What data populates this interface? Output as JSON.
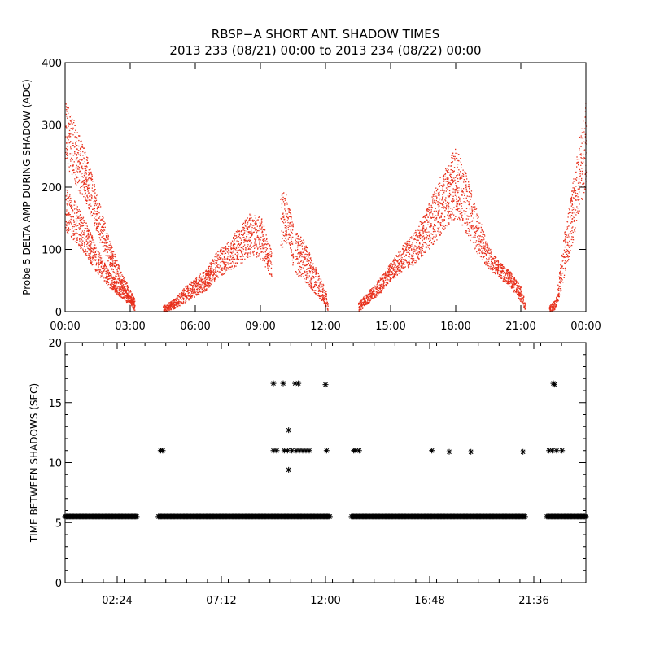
{
  "title": "RBSP−A SHORT ANT. SHADOW TIMES",
  "subtitle": "2013 233 (08/21) 00:00 to 2013 234 (08/22) 00:00",
  "colors": {
    "top_points": "#e8301c",
    "bottom_points": "#000000",
    "axes": "#000000"
  },
  "chart_data": [
    {
      "type": "scatter",
      "ylabel": "Probe 5 DELTA AMP DURING SHADOW (ADC)",
      "xlabel": "",
      "xlim": [
        0,
        24
      ],
      "ylim": [
        0,
        400
      ],
      "x_tick_labels": [
        "00:00",
        "03:00",
        "06:00",
        "09:00",
        "12:00",
        "15:00",
        "18:00",
        "21:00",
        "00:00"
      ],
      "y_tick_labels": [
        "0",
        "100",
        "200",
        "300",
        "400"
      ],
      "series": [
        {
          "color": "#e8301c",
          "bands": [
            {
              "x": [
                0.0,
                0.5,
                1.0,
                1.5,
                2.0,
                2.5,
                3.0,
                3.2
              ],
              "y_low": [
                240,
                200,
                170,
                120,
                75,
                45,
                15,
                5
              ],
              "y_high": [
                340,
                300,
                250,
                185,
                120,
                70,
                35,
                20
              ]
            },
            {
              "x": [
                0.0,
                0.5,
                1.0,
                1.5,
                2.0,
                2.5,
                3.0,
                3.2
              ],
              "y_low": [
                130,
                110,
                85,
                60,
                40,
                25,
                10,
                2
              ],
              "y_high": [
                200,
                175,
                140,
                100,
                65,
                45,
                25,
                12
              ]
            },
            {
              "x": [
                4.5,
                5.0,
                5.5,
                6.0,
                6.5,
                7.0,
                7.5,
                8.0,
                8.5,
                9.0,
                9.5
              ],
              "y_low": [
                0,
                5,
                15,
                25,
                35,
                55,
                65,
                75,
                90,
                85,
                55
              ],
              "y_high": [
                10,
                20,
                40,
                55,
                70,
                100,
                115,
                135,
                160,
                155,
                100
              ]
            },
            {
              "x": [
                9.9,
                10.1,
                10.3,
                10.5
              ],
              "y_low": [
                90,
                110,
                110,
                70
              ],
              "y_high": [
                195,
                195,
                175,
                140
              ]
            },
            {
              "x": [
                10.6,
                11.0,
                11.5,
                12.0,
                12.1
              ],
              "y_low": [
                60,
                50,
                30,
                10,
                2
              ],
              "y_high": [
                130,
                115,
                75,
                35,
                15
              ]
            },
            {
              "x": [
                13.5,
                14.0,
                14.5,
                15.0,
                15.5,
                16.0,
                16.5,
                17.0,
                17.5,
                18.0,
                18.5,
                19.0,
                19.5,
                20.0,
                20.5,
                21.0,
                21.2
              ],
              "y_low": [
                0,
                15,
                30,
                50,
                65,
                75,
                90,
                110,
                135,
                150,
                125,
                90,
                70,
                55,
                40,
                15,
                2
              ],
              "y_high": [
                15,
                35,
                55,
                80,
                105,
                125,
                155,
                195,
                235,
                265,
                220,
                160,
                105,
                80,
                65,
                40,
                15
              ]
            },
            {
              "x": [
                22.3,
                22.6,
                22.8,
                23.0,
                23.3,
                23.6,
                24.0
              ],
              "y_low": [
                0,
                5,
                30,
                60,
                100,
                150,
                200
              ],
              "y_high": [
                10,
                20,
                75,
                130,
                190,
                260,
                345
              ]
            }
          ]
        }
      ]
    },
    {
      "type": "scatter",
      "ylabel": "TIME BETWEEN SHADOWS (SEC)",
      "xlabel": "",
      "xlim": [
        0,
        24
      ],
      "ylim": [
        0,
        20
      ],
      "x_tick_labels": [
        "02:24",
        "07:12",
        "12:00",
        "16:48",
        "21:36"
      ],
      "x_tick_values": [
        2.4,
        7.2,
        12.0,
        16.8,
        21.6
      ],
      "y_tick_labels": [
        "0",
        "5",
        "10",
        "15",
        "20"
      ],
      "baseline_segments": [
        {
          "x_start": 0.0,
          "x_end": 3.3,
          "y": 5.5
        },
        {
          "x_start": 4.3,
          "x_end": 12.2,
          "y": 5.5
        },
        {
          "x_start": 13.2,
          "x_end": 21.2,
          "y": 5.5
        },
        {
          "x_start": 22.2,
          "x_end": 24.0,
          "y": 5.5
        }
      ],
      "points": [
        {
          "x": 4.4,
          "y": 11.0
        },
        {
          "x": 4.5,
          "y": 11.0
        },
        {
          "x": 9.6,
          "y": 16.6
        },
        {
          "x": 9.6,
          "y": 11.0
        },
        {
          "x": 9.75,
          "y": 11.0
        },
        {
          "x": 10.05,
          "y": 16.6
        },
        {
          "x": 10.1,
          "y": 11.0
        },
        {
          "x": 10.25,
          "y": 11.0
        },
        {
          "x": 10.3,
          "y": 12.7
        },
        {
          "x": 10.3,
          "y": 9.4
        },
        {
          "x": 10.45,
          "y": 11.0
        },
        {
          "x": 10.6,
          "y": 16.6
        },
        {
          "x": 10.65,
          "y": 11.0
        },
        {
          "x": 10.75,
          "y": 16.6
        },
        {
          "x": 10.8,
          "y": 11.0
        },
        {
          "x": 10.95,
          "y": 11.0
        },
        {
          "x": 11.1,
          "y": 11.0
        },
        {
          "x": 11.25,
          "y": 11.0
        },
        {
          "x": 12.0,
          "y": 16.5
        },
        {
          "x": 12.05,
          "y": 11.0
        },
        {
          "x": 13.3,
          "y": 11.0
        },
        {
          "x": 13.4,
          "y": 11.0
        },
        {
          "x": 13.55,
          "y": 11.0
        },
        {
          "x": 16.9,
          "y": 11.0
        },
        {
          "x": 17.7,
          "y": 10.9
        },
        {
          "x": 18.7,
          "y": 10.9
        },
        {
          "x": 21.1,
          "y": 10.9
        },
        {
          "x": 22.3,
          "y": 11.0
        },
        {
          "x": 22.45,
          "y": 11.0
        },
        {
          "x": 22.5,
          "y": 16.6
        },
        {
          "x": 22.55,
          "y": 16.5
        },
        {
          "x": 22.65,
          "y": 11.0
        },
        {
          "x": 22.9,
          "y": 11.0
        }
      ]
    }
  ]
}
